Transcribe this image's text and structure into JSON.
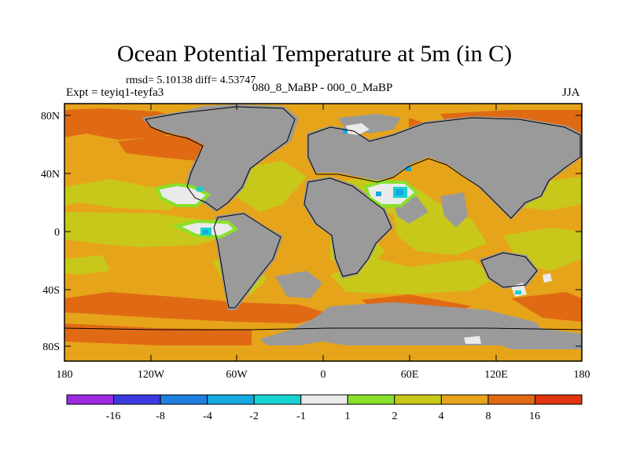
{
  "title": "Ocean Potential Temperature at 5m (in C)",
  "stats": "rmsd= 5.10138 diff= 4.53747",
  "experiment": "Expt = teyiq1-teyfa3",
  "subtitle": "080_8_MaBP - 000_0_MaBP",
  "season": "JJA",
  "axes": {
    "y_ticks": [
      "80N",
      "40N",
      "0",
      "40S",
      "80S"
    ],
    "x_ticks": [
      "180",
      "120W",
      "60W",
      "0",
      "60E",
      "120E",
      "180"
    ]
  },
  "colorbar": {
    "colors": [
      "#9c2be0",
      "#3a3adf",
      "#1f7fe0",
      "#14a9e0",
      "#17d2d2",
      "#eaeaea",
      "#88e02b",
      "#c8c81a",
      "#e6a41a",
      "#e06a14",
      "#e03510"
    ],
    "labels": [
      "-16",
      "-8",
      "-4",
      "-2",
      "-1",
      "1",
      "2",
      "4",
      "8",
      "16"
    ]
  },
  "land_color": "#9a9a9a"
}
